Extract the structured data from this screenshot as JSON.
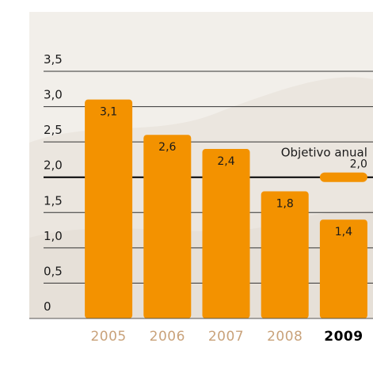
{
  "chart_data": {
    "type": "bar",
    "categories": [
      "2005",
      "2006",
      "2007",
      "2008",
      "2009"
    ],
    "values": [
      3.1,
      2.6,
      2.4,
      1.8,
      1.4
    ],
    "value_labels": [
      "3,1",
      "2,6",
      "2,4",
      "1,8",
      "1,4"
    ],
    "color": "#f39200",
    "ylim": [
      0,
      3.5
    ],
    "yticks": [
      0,
      {
        "value": 0.5,
        "label": "0,5"
      },
      {
        "value": 1.0,
        "label": "1,0"
      },
      {
        "value": 1.5,
        "label": "1,5"
      },
      {
        "value": 2.0,
        "label": "2,0"
      },
      {
        "value": 2.5,
        "label": "2,5"
      },
      {
        "value": 3.0,
        "label": "3,0"
      },
      {
        "value": 3.5,
        "label": "3,5"
      }
    ],
    "grid": true,
    "target": {
      "label": "Objetivo anual",
      "value": 2.0,
      "value_label": "2,0"
    }
  }
}
